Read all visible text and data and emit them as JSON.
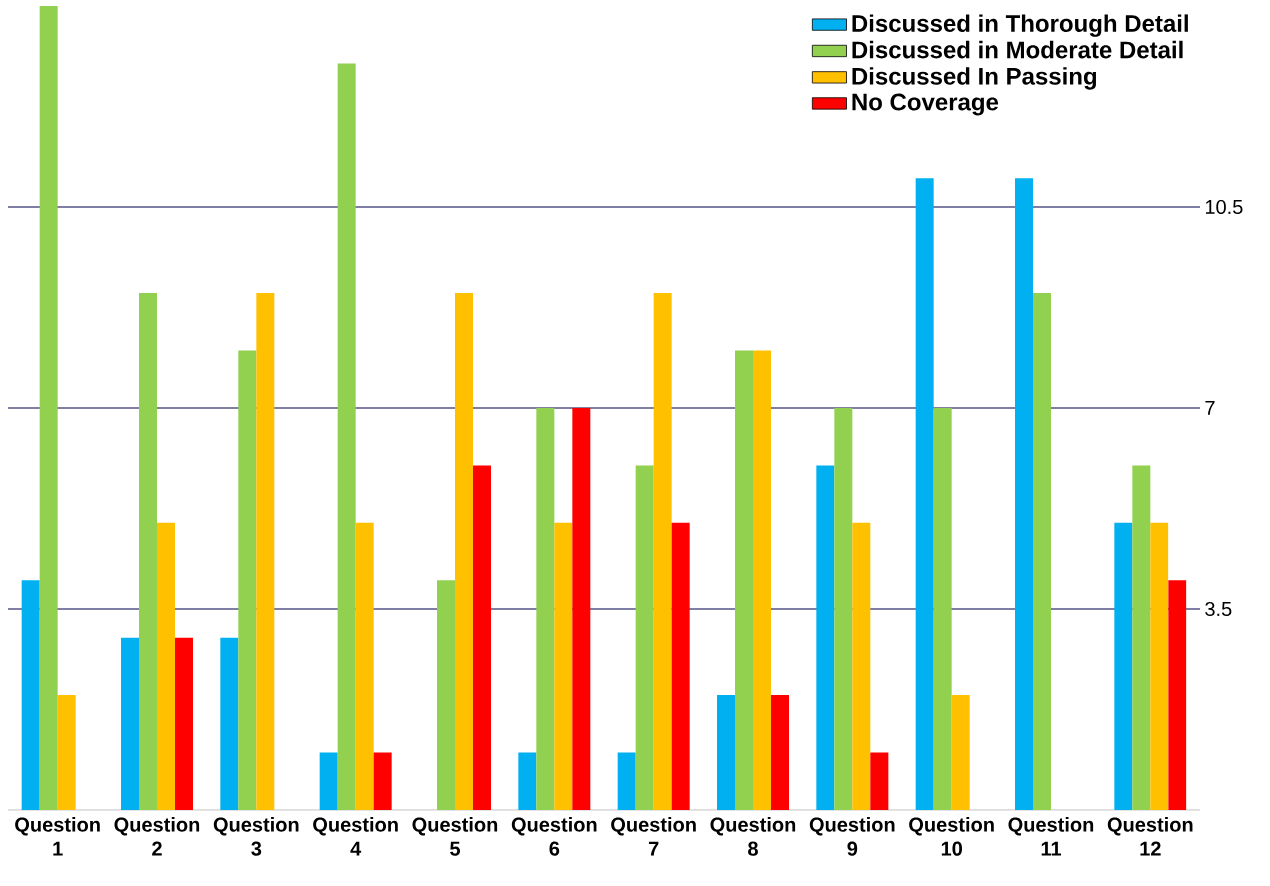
{
  "chart_data": {
    "type": "bar",
    "categories": [
      "Question 1",
      "Question 2",
      "Question 3",
      "Question 4",
      "Question 5",
      "Question 6",
      "Question 7",
      "Question 8",
      "Question 9",
      "Question 10",
      "Question 11",
      "Question 12"
    ],
    "series": [
      {
        "name": "Discussed in Thorough Detail",
        "color": "#00b0f0",
        "values": [
          4,
          3,
          3,
          1,
          0,
          1,
          1,
          2,
          6,
          11,
          11,
          5
        ]
      },
      {
        "name": "Discussed in Moderate Detail",
        "color": "#92d050",
        "values": [
          14,
          9,
          8,
          13,
          4,
          7,
          6,
          8,
          7,
          7,
          9,
          6
        ]
      },
      {
        "name": "Discussed In Passing",
        "color": "#ffc000",
        "values": [
          2,
          5,
          9,
          5,
          9,
          5,
          9,
          8,
          5,
          2,
          0,
          5
        ]
      },
      {
        "name": "No Coverage",
        "color": "#ff0000",
        "values": [
          0,
          3,
          0,
          1,
          6,
          7,
          5,
          2,
          1,
          0,
          0,
          4
        ]
      }
    ],
    "ylim": [
      0,
      14
    ],
    "yticks": [
      3.5,
      7,
      10.5
    ],
    "grid": "y",
    "legend": "top right"
  }
}
